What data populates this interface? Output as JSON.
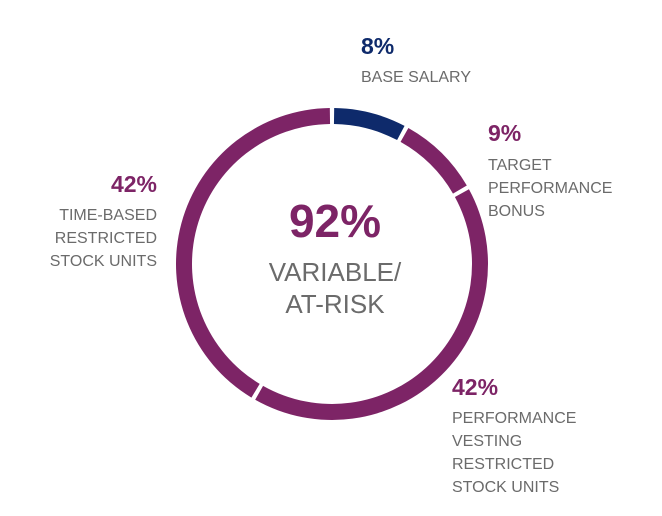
{
  "chart_data": {
    "type": "pie",
    "style": "donut",
    "center": {
      "value": "92%",
      "label_lines": [
        "VARIABLE/",
        "AT-RISK"
      ]
    },
    "slices": [
      {
        "pct_label": "8%",
        "value": 8,
        "label_lines": [
          "BASE SALARY"
        ],
        "color": "#0e2a6b"
      },
      {
        "pct_label": "9%",
        "value": 9,
        "label_lines": [
          "TARGET",
          "PERFORMANCE",
          "BONUS"
        ],
        "color": "#7d2466"
      },
      {
        "pct_label": "42%",
        "value": 42,
        "label_lines": [
          "PERFORMANCE",
          "VESTING",
          "RESTRICTED",
          "STOCK UNITS"
        ],
        "color": "#7d2466"
      },
      {
        "pct_label": "42%",
        "value": 42,
        "label_lines": [
          "TIME-BASED",
          "RESTRICTED",
          "STOCK UNITS"
        ],
        "color": "#7d2466"
      }
    ],
    "colors": {
      "base": "#0e2a6b",
      "variable": "#7d2466",
      "label_text": "#6b6b6b"
    }
  }
}
